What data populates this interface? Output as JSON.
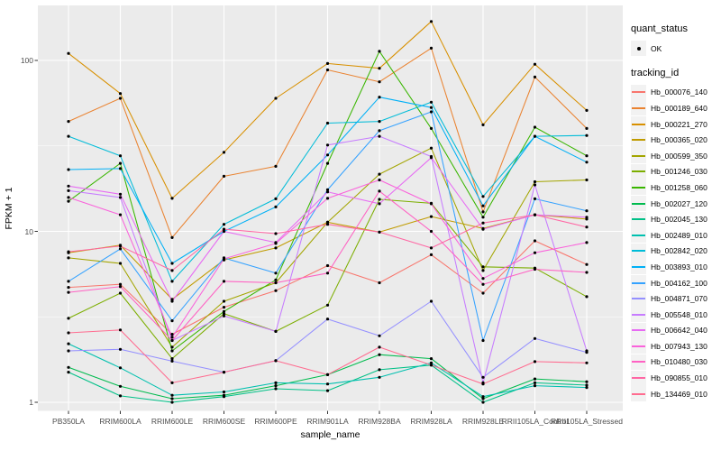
{
  "colors": {
    "panel_bg": "#EBEBEB",
    "grid": "#FFFFFF",
    "tick_mark": "#333333",
    "tick_text": "#4D4D4D",
    "legend_key_bg": "#F2F2F2",
    "point": "#000000"
  },
  "legend": {
    "quant_status_title": "quant_status",
    "quant_status_ok_label": "OK",
    "tracking_id_title": "tracking_id"
  },
  "chart_data": {
    "type": "line",
    "title": "",
    "xlabel": "sample_name",
    "ylabel": "FPKM + 1",
    "y_scale": "log10",
    "ylim": [
      0.9,
      210
    ],
    "y_ticks": [
      1,
      10,
      100
    ],
    "y_minor_ticks": [
      3.1623,
      31.623
    ],
    "grid": "major-and-minor",
    "legend_position": "right",
    "point_shape": "black dot on every observation (quant_status = OK)",
    "categories": [
      "PB350LA",
      "RRIM600LA",
      "RRIM600LE",
      "RRIM600SE",
      "RRIM600PE",
      "RRIM901LA",
      "RRIM928BA",
      "RRIM928LA",
      "RRIM928LE",
      "RRII105LA_Control",
      "RRII105LA_Stressed"
    ],
    "series": [
      {
        "name": "Hb_000076_140",
        "color": "#F8766D",
        "values": [
          4.7,
          4.9,
          2.5,
          3.6,
          4.5,
          6.3,
          5.0,
          7.3,
          4.35,
          8.8,
          6.4
        ]
      },
      {
        "name": "Hb_000189_640",
        "color": "#EA8331",
        "values": [
          44,
          60,
          9.2,
          21,
          24,
          88,
          75,
          118,
          13,
          80,
          40
        ]
      },
      {
        "name": "Hb_000221_270",
        "color": "#D89000",
        "values": [
          110,
          64,
          15.6,
          29,
          60,
          96,
          90,
          169,
          42,
          95,
          51
        ]
      },
      {
        "name": "Hb_000365_020",
        "color": "#C09B00",
        "values": [
          7.5,
          8.3,
          4.0,
          6.8,
          8.0,
          11.3,
          9.9,
          12.2,
          10.4,
          12.5,
          11.8
        ]
      },
      {
        "name": "Hb_000599_350",
        "color": "#A3A500",
        "values": [
          7.0,
          6.5,
          2.1,
          3.9,
          5.0,
          11.3,
          21.6,
          30.7,
          5.9,
          19.5,
          20
        ]
      },
      {
        "name": "Hb_001246_030",
        "color": "#7CAE00",
        "values": [
          3.1,
          4.35,
          1.8,
          3.3,
          2.6,
          3.7,
          15.4,
          14.6,
          6.2,
          6.1,
          4.15
        ]
      },
      {
        "name": "Hb_001258_060",
        "color": "#39B600",
        "values": [
          15,
          25,
          2.0,
          3.4,
          5.2,
          25,
          113,
          40,
          12.1,
          40.7,
          27.7
        ]
      },
      {
        "name": "Hb_002027_120",
        "color": "#00BB4E",
        "values": [
          1.6,
          1.24,
          1.05,
          1.1,
          1.25,
          1.45,
          1.9,
          1.8,
          1.05,
          1.37,
          1.32
        ]
      },
      {
        "name": "Hb_002045_130",
        "color": "#00C087",
        "values": [
          1.5,
          1.09,
          1.0,
          1.08,
          1.2,
          1.17,
          1.55,
          1.65,
          1.0,
          1.3,
          1.26
        ]
      },
      {
        "name": "Hb_002489_010",
        "color": "#00C0AF",
        "values": [
          2.2,
          1.59,
          1.1,
          1.15,
          1.3,
          1.28,
          1.4,
          1.7,
          1.08,
          1.25,
          1.22
        ]
      },
      {
        "name": "Hb_002842_020",
        "color": "#00BCD8",
        "values": [
          36,
          27.7,
          5.1,
          11,
          15.5,
          43,
          44,
          57,
          16,
          36,
          36.4
        ]
      },
      {
        "name": "Hb_003893_010",
        "color": "#00B0F6",
        "values": [
          23,
          23.3,
          6.5,
          10,
          13.9,
          28,
          61,
          53,
          14.1,
          36,
          25.4
        ]
      },
      {
        "name": "Hb_004162_100",
        "color": "#35A2FF",
        "values": [
          5.1,
          7.9,
          3.0,
          7.0,
          5.7,
          17.5,
          38.8,
          50,
          2.3,
          15.5,
          13.2
        ]
      },
      {
        "name": "Hb_004871_070",
        "color": "#9590FF",
        "values": [
          2.0,
          2.04,
          1.74,
          1.5,
          1.75,
          3.07,
          2.45,
          3.9,
          1.4,
          2.36,
          1.96
        ]
      },
      {
        "name": "Hb_005548_010",
        "color": "#C77CFF",
        "values": [
          17.3,
          15.8,
          2.3,
          3.2,
          2.6,
          32,
          36,
          27.4,
          1.3,
          18.7,
          2.0
        ]
      },
      {
        "name": "Hb_006642_040",
        "color": "#E76BF3",
        "values": [
          18.4,
          16.5,
          3.9,
          10,
          8.6,
          17,
          14.5,
          27,
          10.3,
          12.5,
          12.1
        ]
      },
      {
        "name": "Hb_007943_130",
        "color": "#FA62DB",
        "values": [
          15.8,
          12.5,
          2.4,
          6.9,
          8.5,
          15.6,
          20,
          14.5,
          5.3,
          7.5,
          8.6
        ]
      },
      {
        "name": "Hb_010480_030",
        "color": "#FF61C3",
        "values": [
          4.4,
          4.75,
          2.3,
          5.1,
          5.0,
          5.7,
          17.2,
          10,
          4.9,
          6.0,
          5.75
        ]
      },
      {
        "name": "Hb_090855_010",
        "color": "#FF67A4",
        "values": [
          7.6,
          8.2,
          5.9,
          10.3,
          9.7,
          11,
          9.9,
          8.0,
          11.2,
          12.5,
          10.6
        ]
      },
      {
        "name": "Hb_134469_010",
        "color": "#FF6C90",
        "values": [
          2.55,
          2.65,
          1.3,
          1.5,
          1.75,
          1.45,
          2.1,
          1.65,
          1.28,
          1.73,
          1.7
        ]
      }
    ]
  }
}
